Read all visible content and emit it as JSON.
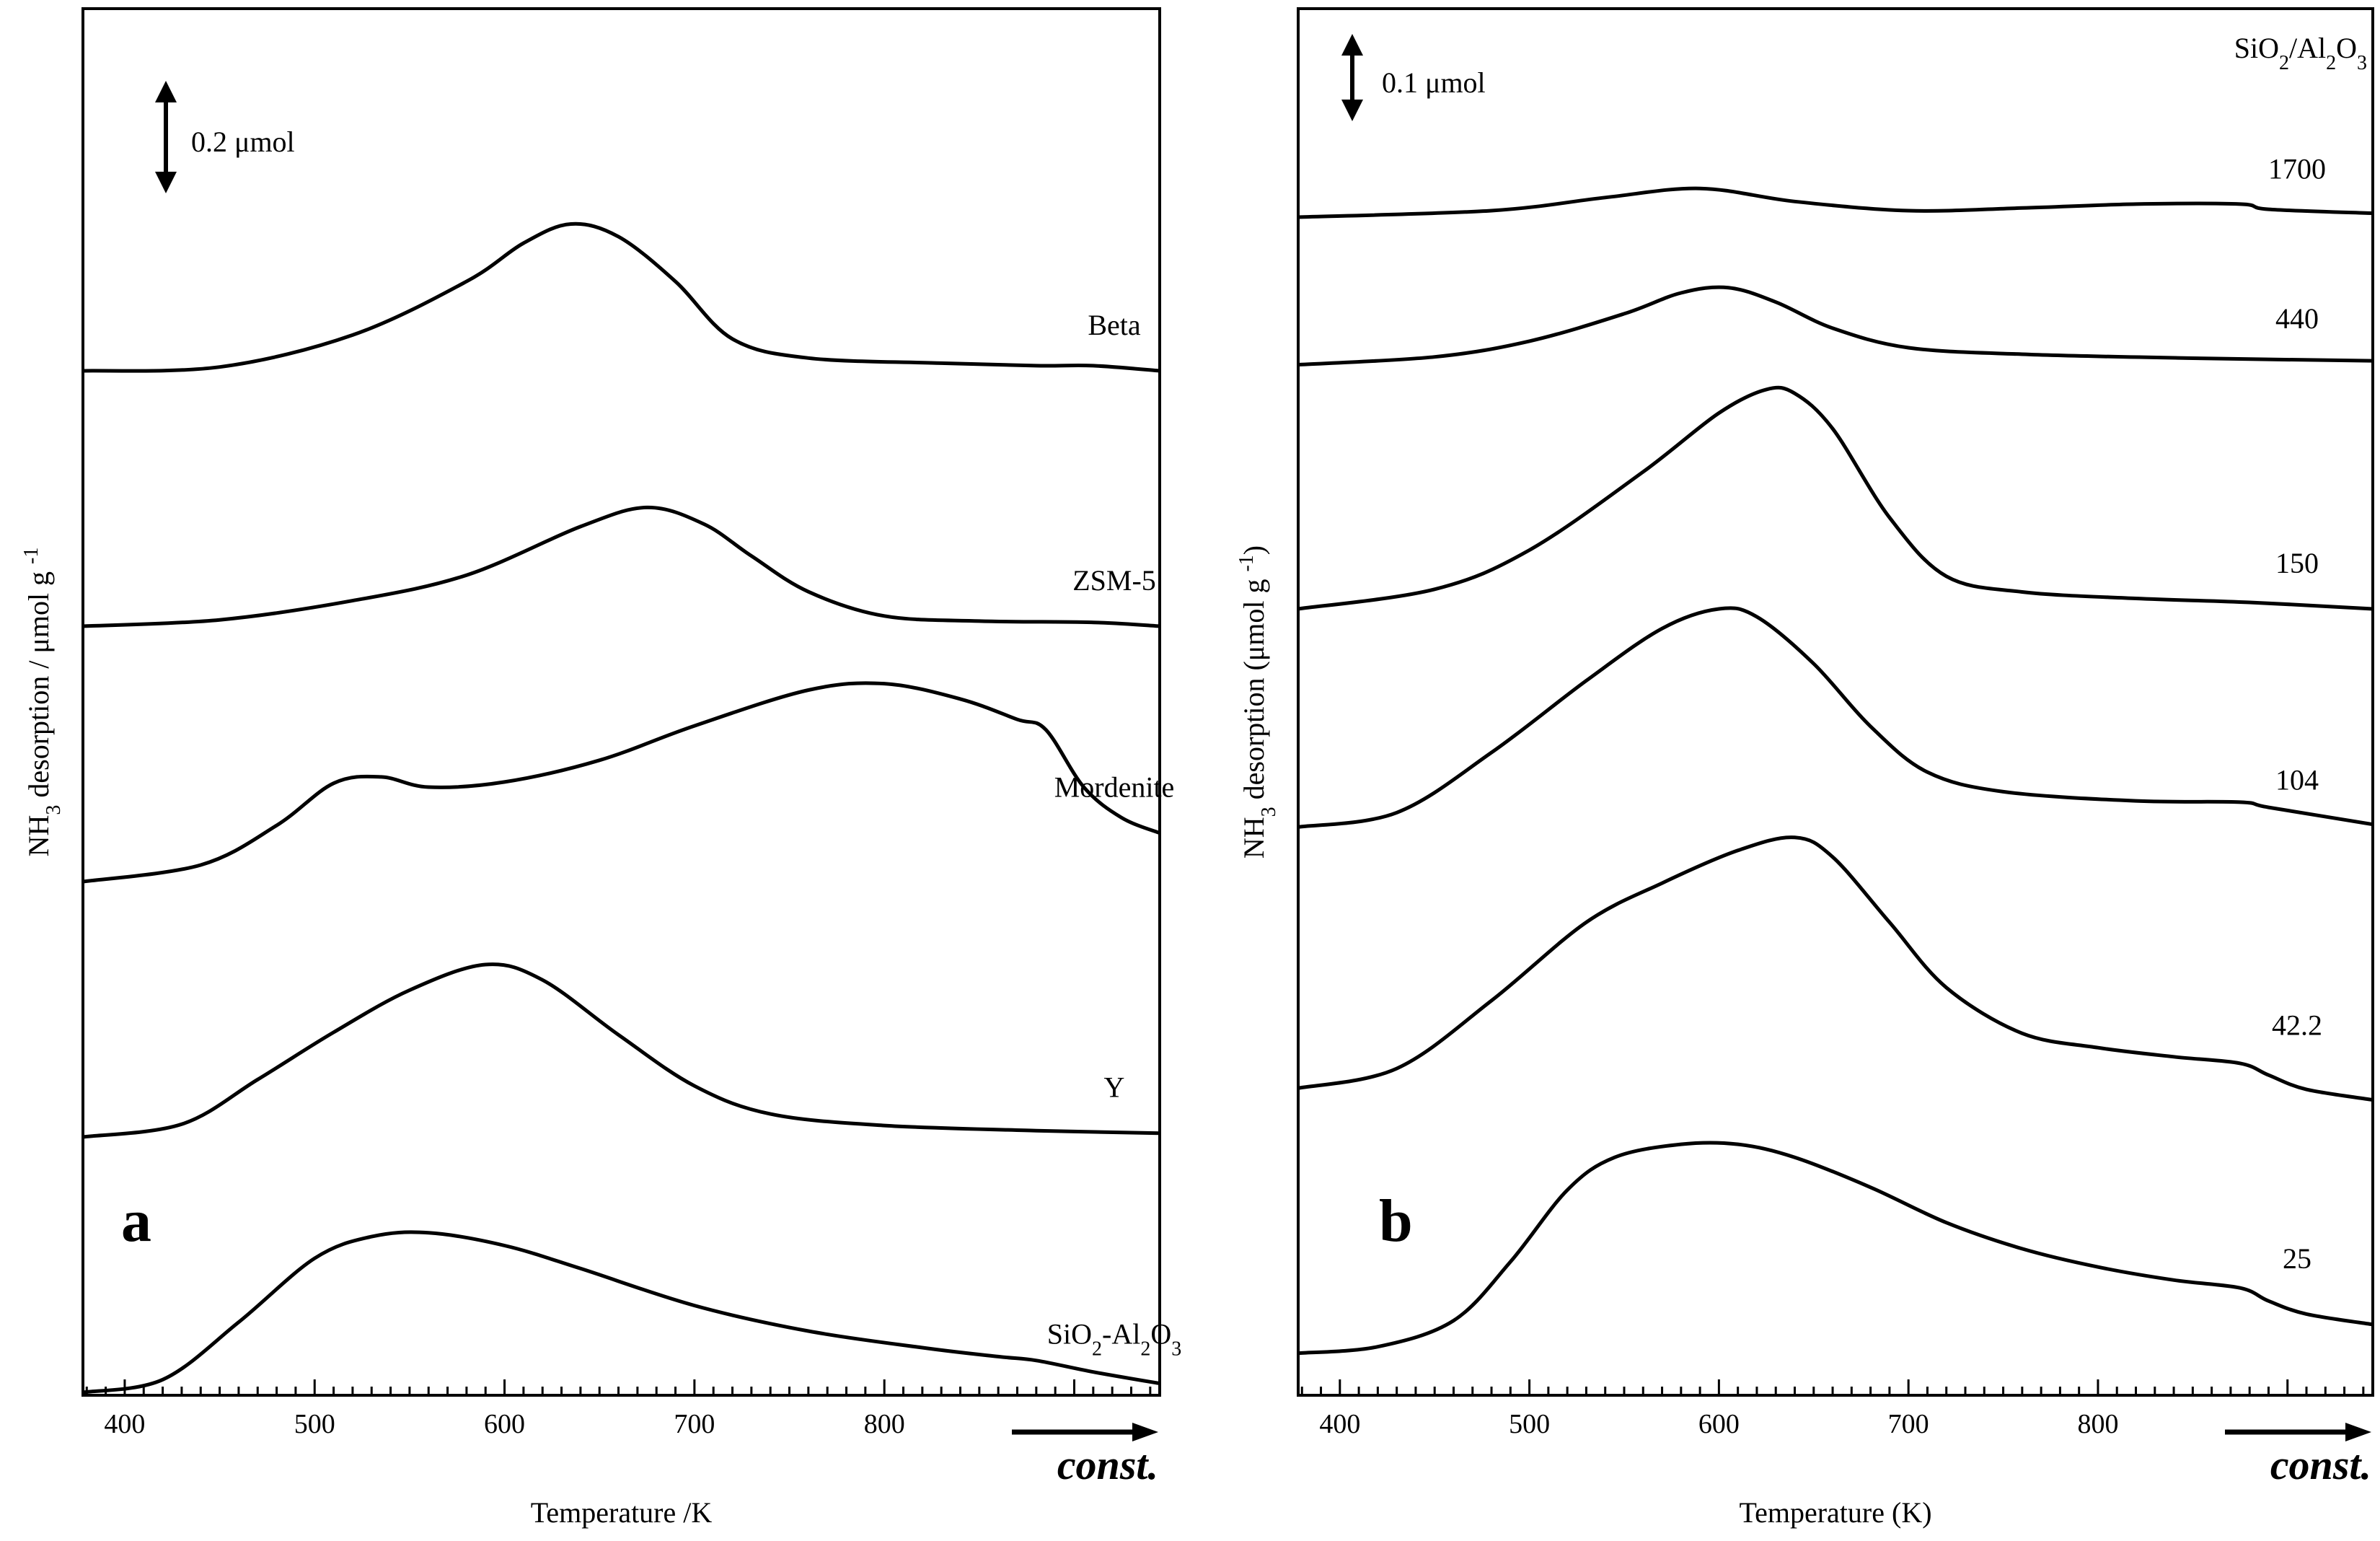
{
  "chart_data": [
    {
      "type": "line",
      "panel": "a",
      "xlabel": "Temperature /K",
      "ylabel": {
        "main": "NH",
        "sub": "3",
        "rest": " desorption / μmol g",
        "sup": "-1"
      },
      "xlim": [
        378,
        945
      ],
      "ylim": [
        0,
        1
      ],
      "xticks": [
        400,
        500,
        600,
        700,
        800
      ],
      "const_label": "const.",
      "scale_bar": {
        "label": "0.2 μmol",
        "value": 0.2
      },
      "series": [
        {
          "name": "Beta",
          "label_parts": [
            {
              "t": "Beta"
            }
          ],
          "x": [
            378,
            450,
            520,
            580,
            610,
            635,
            660,
            690,
            720,
            760,
            830,
            880,
            910,
            945
          ],
          "y": [
            0.8,
            0.803,
            0.828,
            0.87,
            0.9,
            0.915,
            0.905,
            0.87,
            0.825,
            0.81,
            0.806,
            0.804,
            0.804,
            0.8
          ]
        },
        {
          "name": "ZSM-5",
          "label_parts": [
            {
              "t": "ZSM-5"
            }
          ],
          "x": [
            378,
            450,
            520,
            580,
            640,
            675,
            705,
            730,
            760,
            800,
            850,
            910,
            945
          ],
          "y": [
            0.6,
            0.605,
            0.62,
            0.64,
            0.678,
            0.693,
            0.68,
            0.655,
            0.627,
            0.608,
            0.604,
            0.603,
            0.6
          ]
        },
        {
          "name": "Mordenite",
          "label_parts": [
            {
              "t": "Mordenite"
            }
          ],
          "x": [
            378,
            440,
            480,
            510,
            535,
            560,
            600,
            650,
            700,
            760,
            800,
            840,
            870,
            885,
            905,
            925,
            945
          ],
          "y": [
            0.4,
            0.413,
            0.444,
            0.477,
            0.482,
            0.474,
            0.478,
            0.495,
            0.522,
            0.55,
            0.555,
            0.543,
            0.527,
            0.519,
            0.474,
            0.45,
            0.438
          ]
        },
        {
          "name": "Y",
          "label_parts": [
            {
              "t": "Y"
            }
          ],
          "x": [
            378,
            430,
            470,
            510,
            550,
            590,
            620,
            660,
            700,
            740,
            800,
            880,
            945
          ],
          "y": [
            0.2,
            0.21,
            0.245,
            0.282,
            0.315,
            0.335,
            0.323,
            0.28,
            0.24,
            0.218,
            0.209,
            0.205,
            0.203
          ]
        },
        {
          "name": "SiO2-Al2O3",
          "label_parts": [
            {
              "t": "SiO"
            },
            {
              "t": "2",
              "sub": true
            },
            {
              "t": "-Al"
            },
            {
              "t": "2",
              "sub": true
            },
            {
              "t": "O"
            },
            {
              "t": "3",
              "sub": true
            }
          ],
          "x": [
            378,
            420,
            460,
            500,
            530,
            560,
            600,
            640,
            700,
            760,
            820,
            860,
            880,
            910,
            945
          ],
          "y": [
            0.0,
            0.01,
            0.055,
            0.105,
            0.122,
            0.125,
            0.115,
            0.097,
            0.068,
            0.048,
            0.035,
            0.028,
            0.025,
            0.016,
            0.007
          ]
        }
      ]
    },
    {
      "type": "line",
      "panel": "b",
      "xlabel": "Temperature (K)",
      "ylabel": {
        "main": "NH",
        "sub": "3",
        "rest": " desorption (μmol g",
        "sup": "-1",
        "close": ")"
      },
      "xlim": [
        378,
        945
      ],
      "ylim": [
        0,
        1
      ],
      "xticks": [
        400,
        500,
        600,
        700,
        800
      ],
      "const_label": "const.",
      "scale_bar": {
        "label": "0.1 μmol",
        "value": 0.1
      },
      "legend_title_parts": [
        {
          "t": "SiO"
        },
        {
          "t": "2",
          "sub": true
        },
        {
          "t": "/Al"
        },
        {
          "t": "2",
          "sub": true
        },
        {
          "t": "O"
        },
        {
          "t": "3",
          "sub": true
        }
      ],
      "series": [
        {
          "name": "1700",
          "label_parts": [
            {
              "t": "1700"
            }
          ],
          "x": [
            378,
            480,
            540,
            590,
            640,
            700,
            760,
            820,
            875,
            890,
            945
          ],
          "y": [
            0.9,
            0.905,
            0.915,
            0.922,
            0.912,
            0.905,
            0.907,
            0.91,
            0.91,
            0.906,
            0.903
          ]
        },
        {
          "name": "440",
          "label_parts": [
            {
              "t": "440"
            }
          ],
          "x": [
            378,
            450,
            500,
            550,
            580,
            605,
            630,
            660,
            700,
            760,
            850,
            945
          ],
          "y": [
            0.787,
            0.793,
            0.805,
            0.826,
            0.842,
            0.846,
            0.835,
            0.815,
            0.8,
            0.795,
            0.792,
            0.79
          ]
        },
        {
          "name": "150",
          "label_parts": [
            {
              "t": "150"
            }
          ],
          "x": [
            378,
            450,
            500,
            560,
            600,
            625,
            640,
            660,
            690,
            720,
            760,
            820,
            880,
            945
          ],
          "y": [
            0.6,
            0.615,
            0.645,
            0.705,
            0.75,
            0.768,
            0.765,
            0.738,
            0.67,
            0.625,
            0.613,
            0.608,
            0.605,
            0.6
          ]
        },
        {
          "name": "104",
          "label_parts": [
            {
              "t": "104"
            }
          ],
          "x": [
            378,
            430,
            480,
            530,
            570,
            600,
            620,
            650,
            680,
            710,
            750,
            820,
            875,
            890,
            945
          ],
          "y": [
            0.433,
            0.444,
            0.49,
            0.545,
            0.585,
            0.6,
            0.594,
            0.558,
            0.51,
            0.475,
            0.46,
            0.453,
            0.452,
            0.448,
            0.435
          ]
        },
        {
          "name": "42.2",
          "label_parts": [
            {
              "t": "42.2"
            }
          ],
          "x": [
            378,
            430,
            480,
            530,
            570,
            610,
            640,
            660,
            690,
            720,
            760,
            800,
            840,
            875,
            890,
            910,
            945
          ],
          "y": [
            0.233,
            0.248,
            0.3,
            0.36,
            0.39,
            0.415,
            0.425,
            0.41,
            0.36,
            0.31,
            0.275,
            0.264,
            0.257,
            0.252,
            0.243,
            0.232,
            0.224
          ]
        },
        {
          "name": "25",
          "label_parts": [
            {
              "t": "25"
            }
          ],
          "x": [
            378,
            420,
            460,
            490,
            520,
            545,
            580,
            610,
            640,
            680,
            720,
            760,
            800,
            840,
            875,
            890,
            910,
            945
          ],
          "y": [
            0.03,
            0.035,
            0.055,
            0.1,
            0.155,
            0.18,
            0.19,
            0.19,
            0.18,
            0.157,
            0.13,
            0.11,
            0.096,
            0.086,
            0.08,
            0.07,
            0.06,
            0.052
          ]
        }
      ]
    }
  ]
}
